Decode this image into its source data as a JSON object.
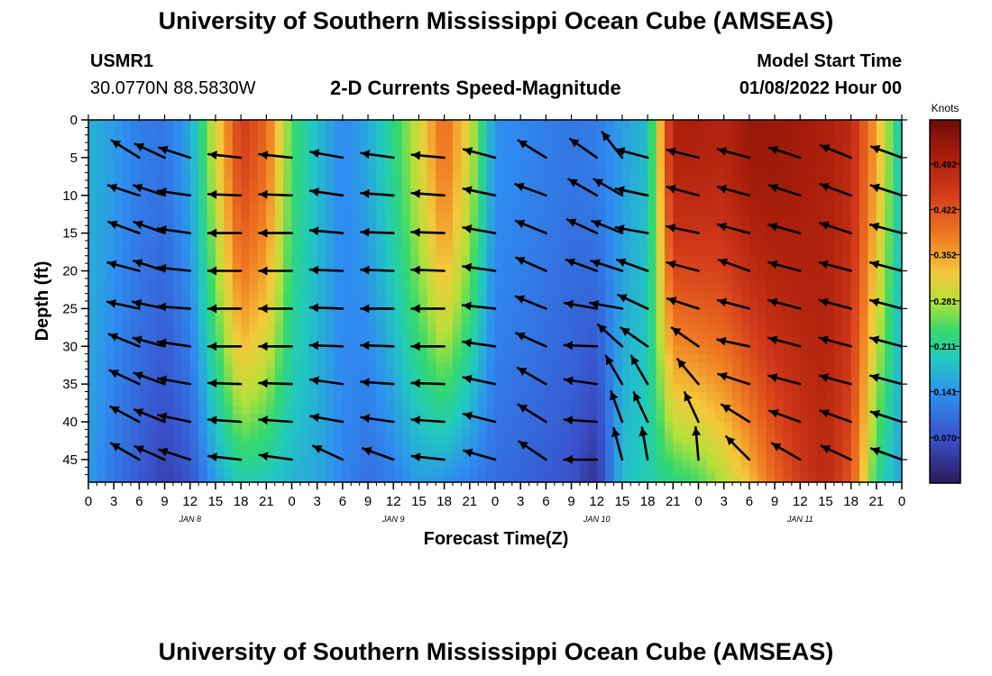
{
  "header": {
    "title": "University of Southern Mississippi Ocean Cube (AMSEAS)",
    "station_id": "USMR1",
    "coords": "30.0770N  88.5830W",
    "subtitle": "2-D Currents Speed-Magnitude",
    "model_start_label": "Model Start Time",
    "model_start_value": "01/08/2022 Hour 00"
  },
  "footer": {
    "title": "University of Southern Mississippi Ocean Cube (AMSEAS)"
  },
  "chart_data": {
    "type": "heatmap",
    "title": "2-D Currents Speed-Magnitude",
    "xlabel": "Forecast Time(Z)",
    "ylabel": "Depth (ft)",
    "x_unit": "hours since 01/08/2022 00Z",
    "xlim": [
      0,
      96
    ],
    "ylim": [
      0,
      48
    ],
    "x_ticks": [
      0,
      3,
      6,
      9,
      12,
      15,
      18,
      21,
      24,
      27,
      30,
      33,
      36,
      39,
      42,
      45,
      48,
      51,
      54,
      57,
      60,
      63,
      66,
      69,
      72,
      75,
      78,
      81,
      84,
      87,
      90,
      93,
      96
    ],
    "x_tick_labels": [
      "0",
      "3",
      "6",
      "9",
      "12",
      "15",
      "18",
      "21",
      "0",
      "3",
      "6",
      "9",
      "12",
      "15",
      "18",
      "21",
      "0",
      "3",
      "6",
      "9",
      "12",
      "15",
      "18",
      "21",
      "0",
      "3",
      "6",
      "9",
      "12",
      "15",
      "18",
      "21",
      "0"
    ],
    "day_labels": [
      {
        "text": "JAN 8",
        "hour": 12
      },
      {
        "text": "JAN 9",
        "hour": 36
      },
      {
        "text": "JAN 10",
        "hour": 60
      },
      {
        "text": "JAN 11",
        "hour": 84
      }
    ],
    "y_ticks": [
      0,
      5,
      10,
      15,
      20,
      25,
      30,
      35,
      40,
      45
    ],
    "y_tick_labels": [
      "0",
      "5",
      "10",
      "15",
      "20",
      "25",
      "30",
      "35",
      "40",
      "45"
    ],
    "colorbar": {
      "label": "Knots",
      "min": 0.0,
      "max": 0.56,
      "ticks": [
        0.492,
        0.422,
        0.352,
        0.281,
        0.211,
        0.141,
        0.07
      ],
      "tick_labels": [
        "0.492",
        "0.422",
        "0.352",
        "0.281",
        "0.211",
        "0.141",
        "0.070"
      ]
    },
    "speed_profile_hours": [
      0,
      3,
      6,
      9,
      12,
      15,
      18,
      21,
      24,
      27,
      30,
      33,
      36,
      39,
      42,
      45,
      48,
      51,
      54,
      57,
      60,
      63,
      66,
      69,
      72,
      75,
      78,
      81,
      84,
      87,
      90,
      93,
      96
    ],
    "speed_profile_surface": [
      0.17,
      0.15,
      0.12,
      0.11,
      0.16,
      0.3,
      0.45,
      0.4,
      0.24,
      0.18,
      0.13,
      0.16,
      0.22,
      0.3,
      0.4,
      0.3,
      0.14,
      0.13,
      0.12,
      0.11,
      0.12,
      0.15,
      0.18,
      0.5,
      0.5,
      0.49,
      0.52,
      0.52,
      0.51,
      0.5,
      0.48,
      0.35,
      0.18
    ],
    "speed_profile_bottom": [
      0.15,
      0.11,
      0.08,
      0.05,
      0.07,
      0.15,
      0.2,
      0.19,
      0.17,
      0.16,
      0.13,
      0.1,
      0.12,
      0.15,
      0.14,
      0.12,
      0.1,
      0.09,
      0.08,
      0.07,
      0.03,
      0.18,
      0.2,
      0.22,
      0.24,
      0.28,
      0.33,
      0.4,
      0.45,
      0.48,
      0.42,
      0.22,
      0.15
    ],
    "vector_rows_depth_ft": [
      0,
      5,
      10,
      15,
      20,
      25,
      30,
      35,
      40,
      45
    ],
    "vectors": [
      {
        "hour": 0,
        "dir": [
          154,
          150,
          168,
          166,
          172,
          160,
          152,
          150,
          148,
          146
        ]
      },
      {
        "hour": 6,
        "dir": [
          150,
          148,
          162,
          160,
          165,
          168,
          158,
          155,
          152,
          150
        ]
      },
      {
        "hour": 9,
        "dir": [
          152,
          155,
          162,
          160,
          162,
          168,
          165,
          160,
          158,
          156
        ]
      },
      {
        "hour": 12,
        "dir": [
          150,
          162,
          172,
          172,
          174,
          176,
          172,
          170,
          168,
          162
        ]
      },
      {
        "hour": 18,
        "dir": [
          174,
          174,
          178,
          180,
          180,
          180,
          180,
          178,
          176,
          174
        ]
      },
      {
        "hour": 24,
        "dir": [
          170,
          174,
          178,
          180,
          180,
          180,
          180,
          178,
          176,
          172
        ]
      },
      {
        "hour": 30,
        "dir": [
          165,
          170,
          172,
          175,
          178,
          178,
          178,
          172,
          170,
          155
        ]
      },
      {
        "hour": 36,
        "dir": [
          165,
          172,
          176,
          178,
          178,
          180,
          178,
          176,
          172,
          160
        ]
      },
      {
        "hour": 42,
        "dir": [
          170,
          175,
          176,
          178,
          178,
          180,
          180,
          178,
          176,
          174
        ]
      },
      {
        "hour": 48,
        "dir": [
          160,
          165,
          168,
          170,
          172,
          174,
          172,
          168,
          166,
          164
        ]
      },
      {
        "hour": 54,
        "dir": [
          150,
          148,
          160,
          158,
          156,
          158,
          156,
          150,
          148,
          146
        ]
      },
      {
        "hour": 60,
        "dir": [
          148,
          145,
          150,
          155,
          160,
          170,
          178,
          172,
          176,
          180
        ]
      },
      {
        "hour": 63,
        "dir": [
          130,
          128,
          150,
          158,
          162,
          170,
          138,
          120,
          110,
          105
        ]
      },
      {
        "hour": 66,
        "dir": [
          168,
          165,
          168,
          170,
          160,
          155,
          145,
          120,
          115,
          100
        ]
      },
      {
        "hour": 72,
        "dir": [
          170,
          166,
          165,
          168,
          165,
          162,
          145,
          130,
          115,
          95
        ]
      },
      {
        "hour": 78,
        "dir": [
          165,
          165,
          165,
          165,
          160,
          165,
          168,
          162,
          148,
          135
        ]
      },
      {
        "hour": 84,
        "dir": [
          160,
          162,
          162,
          165,
          165,
          165,
          165,
          165,
          160,
          150
        ]
      },
      {
        "hour": 90,
        "dir": [
          155,
          158,
          160,
          162,
          165,
          165,
          165,
          165,
          160,
          155
        ]
      },
      {
        "hour": 96,
        "dir": [
          158,
          160,
          162,
          165,
          165,
          165,
          165,
          165,
          162,
          160
        ]
      }
    ]
  }
}
